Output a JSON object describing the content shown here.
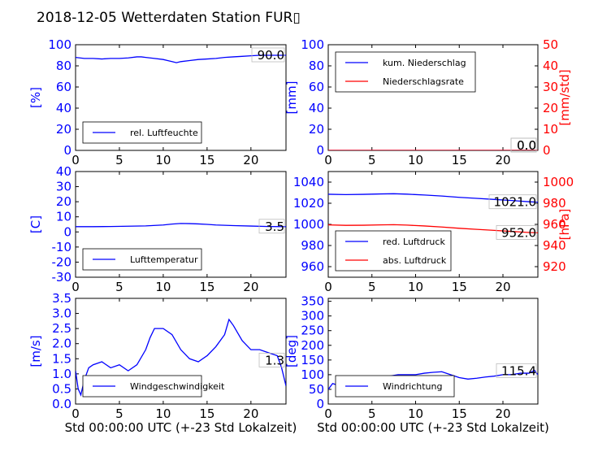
{
  "page": {
    "title": "2018-12-05 Wetterdaten Station FUR▯"
  },
  "colors": {
    "blue": "#0000ff",
    "red": "#ff0000",
    "lightblue": "#8a8af0",
    "black": "#000000"
  },
  "chart_data": [
    {
      "id": "humidity",
      "type": "line",
      "xlabel": "",
      "ylabel": "[%]",
      "xlim": [
        0,
        24
      ],
      "ylim": [
        0,
        100
      ],
      "xticks": [
        0,
        5,
        10,
        15,
        20
      ],
      "yticks": [
        0,
        20,
        40,
        60,
        80,
        100
      ],
      "legend_position": "bottom-left",
      "value_label": "90.0",
      "series": [
        {
          "name": "rel. Luftfeuchte",
          "color": "#0000ff",
          "x": [
            0,
            1,
            2,
            3,
            4,
            5,
            6,
            7,
            7.5,
            8,
            9,
            10,
            10.5,
            11,
            11.5,
            12,
            13,
            14,
            15,
            16,
            17,
            18,
            19,
            20,
            21,
            22,
            23,
            24
          ],
          "y": [
            88,
            87,
            87,
            86.5,
            87,
            87,
            87.5,
            88.5,
            88.5,
            88,
            87,
            86,
            85,
            84,
            83,
            84,
            85,
            86,
            86.5,
            87,
            88,
            88.5,
            89,
            89.5,
            90,
            90,
            90,
            90
          ]
        }
      ]
    },
    {
      "id": "precipitation",
      "type": "line",
      "xlabel": "",
      "ylabel": "[mm]",
      "ylabel2": "[mm/std]",
      "xlim": [
        0,
        24
      ],
      "ylim": [
        0,
        100
      ],
      "ylim2": [
        0,
        50
      ],
      "xticks": [
        0,
        5,
        10,
        15,
        20
      ],
      "yticks": [
        0,
        20,
        40,
        60,
        80,
        100
      ],
      "yticks2": [
        0,
        10,
        20,
        30,
        40,
        50
      ],
      "legend_position": "top-left",
      "value_labels": [
        "0.0",
        "0.0"
      ],
      "series": [
        {
          "name": "kum. Niederschlag",
          "color": "#0000ff",
          "axis": "left",
          "x": [
            0,
            24
          ],
          "y": [
            0,
            0
          ]
        },
        {
          "name": "Niederschlagsrate",
          "color": "#ff0000",
          "axis": "right",
          "x": [
            0,
            24
          ],
          "y": [
            0,
            0
          ]
        }
      ]
    },
    {
      "id": "temperature",
      "type": "line",
      "xlabel": "",
      "ylabel": "[C]",
      "xlim": [
        0,
        24
      ],
      "ylim": [
        -30,
        40
      ],
      "xticks": [
        0,
        5,
        10,
        15,
        20
      ],
      "yticks": [
        -30,
        -20,
        -10,
        0,
        10,
        20,
        30,
        40
      ],
      "legend_position": "bottom-left",
      "value_label": "3.5",
      "series": [
        {
          "name": "Lufttemperatur",
          "color": "#0000ff",
          "x": [
            0,
            2,
            4,
            6,
            8,
            10,
            11,
            12,
            13,
            14,
            15,
            16,
            18,
            20,
            22,
            24
          ],
          "y": [
            3.5,
            3.5,
            3.6,
            3.8,
            4.0,
            4.6,
            5.2,
            5.6,
            5.5,
            5.3,
            5.0,
            4.6,
            4.2,
            3.9,
            3.6,
            3.5
          ]
        }
      ]
    },
    {
      "id": "pressure",
      "type": "line",
      "xlabel": "",
      "ylabel": "",
      "ylabel2": "[hPa]",
      "xlim": [
        0,
        24
      ],
      "ylim": [
        950,
        1050
      ],
      "ylim2": [
        910,
        1010
      ],
      "xticks": [
        0,
        5,
        10,
        15,
        20
      ],
      "yticks": [
        960,
        980,
        1000,
        1020,
        1040
      ],
      "yticks2": [
        920,
        940,
        960,
        980,
        1000
      ],
      "legend_position": "bottom-left",
      "value_labels": [
        "1021.0",
        "952.0"
      ],
      "series": [
        {
          "name": "red. Luftdruck",
          "color": "#0000ff",
          "axis": "left",
          "x": [
            0,
            2,
            4,
            6,
            7.5,
            9,
            11,
            13,
            15,
            17,
            19,
            21,
            23,
            24
          ],
          "y": [
            1028.5,
            1028.2,
            1028.4,
            1028.8,
            1029.0,
            1028.6,
            1027.8,
            1026.8,
            1025.6,
            1024.6,
            1023.6,
            1022.6,
            1021.4,
            1021.0
          ]
        },
        {
          "name": "abs. Luftdruck",
          "color": "#ff0000",
          "axis": "right",
          "x": [
            0,
            2,
            4,
            6,
            7.5,
            9,
            11,
            13,
            15,
            17,
            19,
            21,
            23,
            24
          ],
          "y": [
            959.5,
            959.1,
            959.2,
            959.5,
            959.7,
            959.3,
            958.5,
            957.5,
            956.3,
            955.3,
            954.3,
            953.3,
            952.3,
            952.0
          ]
        }
      ]
    },
    {
      "id": "windspeed",
      "type": "line",
      "xlabel": "Std 00:00:00 UTC (+-23 Std Lokalzeit)",
      "ylabel": "[m/s]",
      "xlim": [
        0,
        24
      ],
      "ylim": [
        0,
        3.5
      ],
      "xticks": [
        0,
        5,
        10,
        15,
        20
      ],
      "yticks": [
        0.0,
        0.5,
        1.0,
        1.5,
        2.0,
        2.5,
        3.0,
        3.5
      ],
      "legend_position": "bottom-left",
      "value_label": "1.3",
      "series": [
        {
          "name": "Windgeschwindigkeit",
          "color": "#0000ff",
          "x": [
            0,
            0.3,
            0.6,
            1,
            1.5,
            2,
            3,
            4,
            5,
            6,
            7,
            8,
            8.5,
            9,
            10,
            11,
            12,
            13,
            14,
            15,
            16,
            17,
            17.5,
            18,
            19,
            20,
            21,
            22,
            23,
            23.5,
            24
          ],
          "y": [
            1.1,
            0.5,
            0.3,
            0.8,
            1.2,
            1.3,
            1.4,
            1.2,
            1.3,
            1.1,
            1.3,
            1.8,
            2.2,
            2.5,
            2.5,
            2.3,
            1.8,
            1.5,
            1.4,
            1.6,
            1.9,
            2.3,
            2.8,
            2.6,
            2.1,
            1.8,
            1.8,
            1.7,
            1.6,
            1.2,
            0.6
          ]
        }
      ]
    },
    {
      "id": "winddirection",
      "type": "line",
      "xlabel": "Std 00:00:00 UTC (+-23 Std Lokalzeit)",
      "ylabel": "[deg]",
      "xlim": [
        0,
        24
      ],
      "ylim": [
        0,
        360
      ],
      "xticks": [
        0,
        5,
        10,
        15,
        20
      ],
      "yticks": [
        0,
        50,
        100,
        150,
        200,
        250,
        300,
        350
      ],
      "legend_position": "bottom-left",
      "value_label": "115.4",
      "series": [
        {
          "name": "Windrichtung",
          "color": "#0000ff",
          "x": [
            0,
            0.5,
            1,
            2,
            3,
            4,
            5,
            6,
            7,
            8,
            9,
            10,
            11,
            12,
            13,
            14,
            15,
            16,
            17,
            18,
            19,
            20,
            21,
            22,
            23,
            23.6,
            24
          ],
          "y": [
            50,
            70,
            65,
            70,
            75,
            80,
            85,
            90,
            95,
            100,
            100,
            100,
            105,
            108,
            110,
            100,
            90,
            85,
            88,
            92,
            95,
            100,
            100,
            105,
            105,
            115,
            100
          ]
        }
      ]
    }
  ]
}
